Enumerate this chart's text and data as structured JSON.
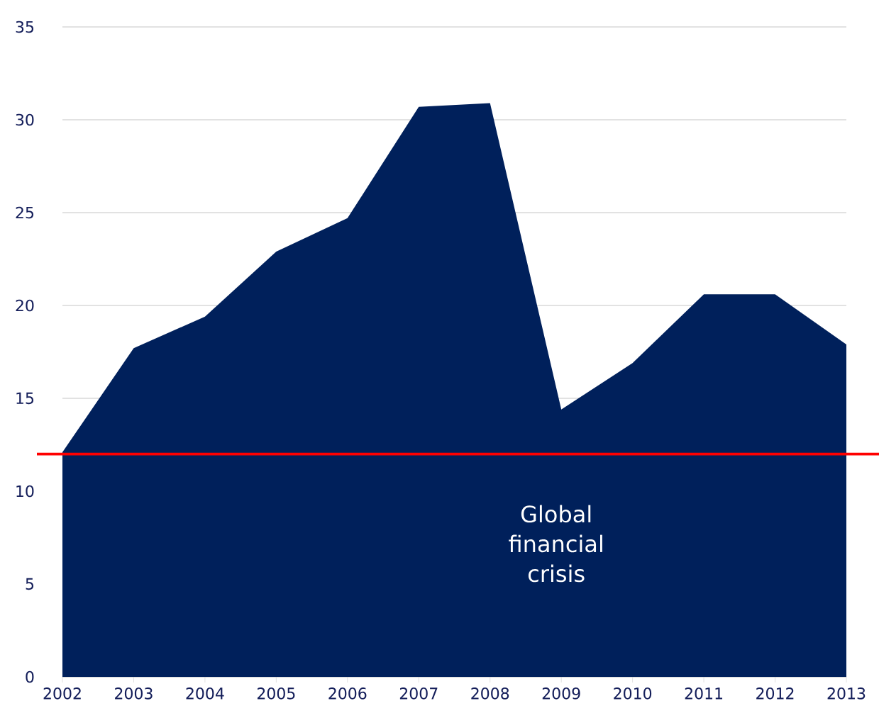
{
  "chart_data": {
    "type": "area",
    "x": [
      2002,
      2003,
      2004,
      2005,
      2006,
      2007,
      2008,
      2009,
      2010,
      2011,
      2012,
      2013
    ],
    "values": [
      12.1,
      17.7,
      19.4,
      22.9,
      24.7,
      30.7,
      30.9,
      14.4,
      16.9,
      20.6,
      20.6,
      17.9
    ],
    "color": "#00205b",
    "xlim": [
      2002,
      2013
    ],
    "xticks": [
      2002,
      2003,
      2004,
      2005,
      2006,
      2007,
      2008,
      2009,
      2010,
      2011,
      2012,
      2013
    ],
    "ylim": [
      0,
      35
    ],
    "yticks": [
      0,
      5,
      10,
      15,
      20,
      25,
      30,
      35
    ],
    "grid": "y",
    "ref_lines": [
      {
        "axis": "y",
        "value": 12,
        "color": "#ff0000"
      }
    ],
    "annotations": [
      "Global financial crisis"
    ]
  }
}
